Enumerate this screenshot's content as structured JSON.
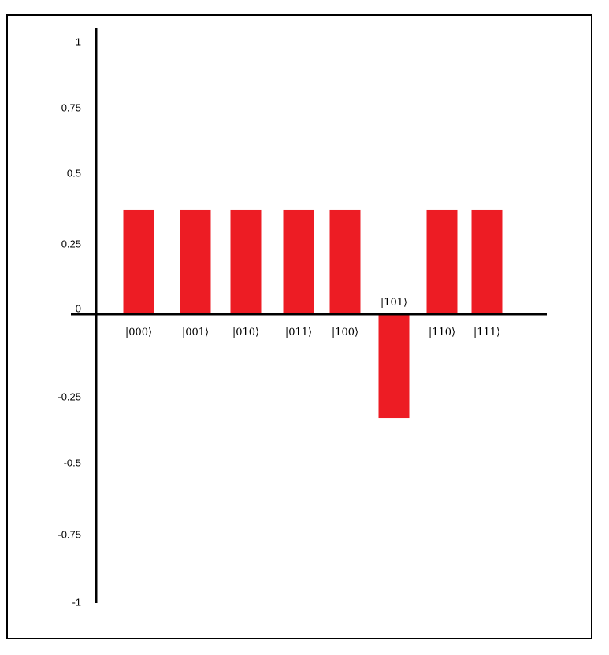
{
  "chart_data": {
    "type": "bar",
    "categories": [
      "|000⟩",
      "|001⟩",
      "|010⟩",
      "|011⟩",
      "|100⟩",
      "|101⟩",
      "|110⟩",
      "|111⟩"
    ],
    "values": [
      0.354,
      0.354,
      0.354,
      0.354,
      0.354,
      -0.354,
      0.354,
      0.354
    ],
    "title": "",
    "xlabel": "",
    "ylabel": "",
    "ylim": [
      -1,
      1
    ],
    "yticks": [
      1,
      0.75,
      0.5,
      0.25,
      0,
      -0.25,
      -0.5,
      -0.75,
      -1
    ],
    "ytick_labels": [
      "1",
      "0.75",
      "0.5",
      "0.25",
      "0",
      "-0.25",
      "-0.5",
      "-0.75",
      "-1"
    ],
    "grid": false,
    "legend": "none",
    "bar_color": "#ed1c24",
    "axis_color": "#000000"
  }
}
